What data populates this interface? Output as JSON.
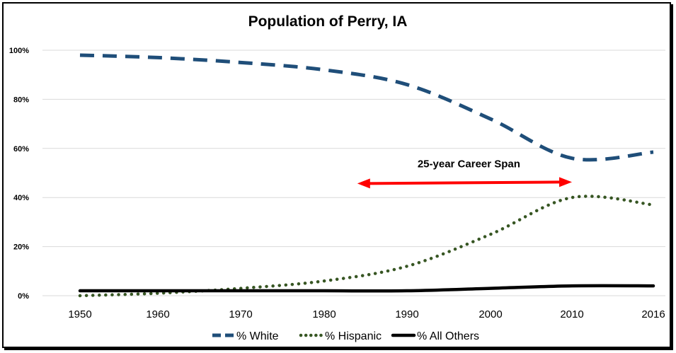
{
  "chart_data": {
    "type": "line",
    "title": "Population of Perry, IA",
    "x": [
      1950,
      1960,
      1970,
      1980,
      1990,
      2000,
      2010,
      2016
    ],
    "x_tick_labels": [
      "1950",
      "1960",
      "1970",
      "1980",
      "1990",
      "2000",
      "2010",
      "2016"
    ],
    "ylim": [
      0,
      100
    ],
    "y_ticks": [
      0,
      20,
      40,
      60,
      80,
      100
    ],
    "y_tick_labels": [
      "0%",
      "20%",
      "40%",
      "60%",
      "80%",
      "100%"
    ],
    "grid": "horizontal",
    "legend_position": "bottom",
    "series": [
      {
        "name": "% White",
        "color": "#1f4e79",
        "style": "dashed",
        "values": [
          98,
          97,
          95,
          92,
          86,
          72,
          56,
          58.5
        ]
      },
      {
        "name": "% Hispanic",
        "color": "#375623",
        "style": "dotted",
        "values": [
          0,
          1,
          3,
          6,
          12,
          25,
          40,
          37
        ]
      },
      {
        "name": "% All Others",
        "color": "#000000",
        "style": "solid",
        "values": [
          2,
          2,
          2,
          2,
          2,
          3,
          4,
          4
        ]
      }
    ],
    "annotation": {
      "text": "25-year Career Span",
      "x_start": 1984,
      "x_end": 2010,
      "y": 46,
      "color": "#ff0000"
    }
  }
}
